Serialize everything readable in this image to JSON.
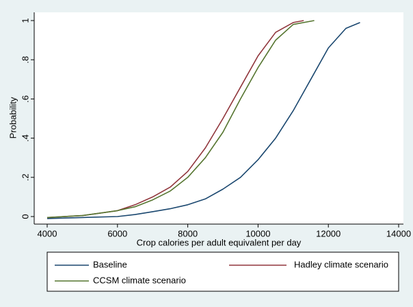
{
  "chart_data": {
    "type": "line",
    "x_label": "Crop calories per adult equivalent per day",
    "y_label": "Probability",
    "xlim": [
      4000,
      14000
    ],
    "xticks": [
      4000,
      6000,
      8000,
      10000,
      12000,
      14000
    ],
    "ylim": [
      0,
      1
    ],
    "yticks": [
      0,
      {
        "value": 0.2,
        "label": ".2"
      },
      {
        "value": 0.4,
        "label": ".4"
      },
      {
        "value": 0.6,
        "label": ".6"
      },
      {
        "value": 0.8,
        "label": ".8"
      },
      1
    ],
    "series": [
      {
        "name": "Baseline",
        "color": "#1a476f",
        "x": [
          4000,
          5000,
          6000,
          6500,
          7000,
          7500,
          8000,
          8500,
          9000,
          9500,
          10000,
          10500,
          11000,
          11500,
          12000,
          12500,
          12900
        ],
        "values": [
          -0.01,
          -0.005,
          0.0,
          0.01,
          0.025,
          0.04,
          0.06,
          0.09,
          0.14,
          0.2,
          0.29,
          0.4,
          0.54,
          0.7,
          0.86,
          0.96,
          0.99
        ]
      },
      {
        "name": "Hadley climate scenario",
        "color": "#90353b",
        "x": [
          4000,
          5000,
          6000,
          6500,
          7000,
          7500,
          8000,
          8500,
          9000,
          9500,
          10000,
          10500,
          11000,
          11300
        ],
        "values": [
          -0.005,
          0.005,
          0.03,
          0.06,
          0.1,
          0.15,
          0.23,
          0.35,
          0.5,
          0.66,
          0.82,
          0.94,
          0.99,
          1.0
        ]
      },
      {
        "name": "CCSM climate scenario",
        "color": "#55752f",
        "x": [
          4000,
          5000,
          6000,
          6500,
          7000,
          7500,
          8000,
          8500,
          9000,
          9500,
          10000,
          10500,
          11000,
          11600
        ],
        "values": [
          -0.005,
          0.005,
          0.03,
          0.05,
          0.085,
          0.13,
          0.2,
          0.3,
          0.43,
          0.6,
          0.76,
          0.9,
          0.98,
          1.0
        ]
      }
    ]
  }
}
